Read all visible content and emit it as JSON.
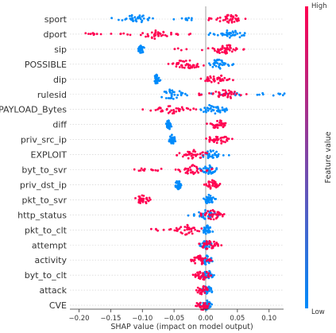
{
  "chart_data": {
    "type": "scatter",
    "subtype": "beeswarm",
    "xlabel": "SHAP value (impact on model output)",
    "xlim": [
      -0.21,
      0.14
    ],
    "xticks": [
      -0.2,
      -0.15,
      -0.1,
      -0.05,
      0.0,
      0.05,
      0.1
    ],
    "xtick_labels": [
      "−0.20",
      "−0.15",
      "−0.10",
      "−0.05",
      "0.00",
      "0.05",
      "0.10"
    ],
    "features": [
      {
        "name": "sport",
        "blue": {
          "range": [
            -0.15,
            -0.02
          ],
          "cluster": -0.11
        },
        "red": {
          "range": [
            0.0,
            0.065
          ],
          "cluster": 0.04
        }
      },
      {
        "name": "dport",
        "red": {
          "range": [
            -0.19,
            -0.02
          ],
          "cluster": -0.08
        },
        "blue": {
          "range": [
            0.0,
            0.06
          ],
          "cluster": 0.04
        }
      },
      {
        "name": "sip",
        "blue": {
          "range": [
            -0.105,
            -0.1
          ],
          "cluster": -0.102
        },
        "red": {
          "range": [
            -0.05,
            0.07
          ],
          "cluster": 0.03
        }
      },
      {
        "name": "POSSIBLE",
        "red": {
          "range": [
            -0.08,
            -0.01
          ],
          "cluster": -0.03
        },
        "blue": {
          "range": [
            0.0,
            0.05
          ],
          "cluster": 0.02
        }
      },
      {
        "name": "dip",
        "blue": {
          "range": [
            -0.08,
            -0.075
          ],
          "cluster": -0.078
        },
        "red": {
          "range": [
            -0.01,
            0.04
          ],
          "cluster": 0.02
        }
      },
      {
        "name": "rulesid",
        "blue": {
          "range": [
            -0.06,
            0.13
          ],
          "cluster": -0.055
        },
        "red": {
          "range": [
            -0.02,
            0.07
          ],
          "cluster": 0.03
        }
      },
      {
        "name": "PAYLOAD_Bytes",
        "red": {
          "range": [
            -0.1,
            -0.01
          ],
          "cluster": -0.05
        },
        "blue": {
          "range": [
            -0.02,
            0.04
          ],
          "cluster": 0.01
        }
      },
      {
        "name": "diff",
        "blue": {
          "range": [
            -0.06,
            -0.055
          ],
          "cluster": -0.058
        },
        "red": {
          "range": [
            0.0,
            0.03
          ],
          "cluster": 0.02
        }
      },
      {
        "name": "priv_src_ip",
        "blue": {
          "range": [
            -0.055,
            -0.05
          ],
          "cluster": -0.053
        },
        "red": {
          "range": [
            0.0,
            0.05
          ],
          "cluster": 0.02
        }
      },
      {
        "name": "EXPLOIT",
        "red": {
          "range": [
            -0.06,
            -0.01
          ],
          "cluster": -0.02
        },
        "blue": {
          "range": [
            0.0,
            0.04
          ],
          "cluster": 0.01
        }
      },
      {
        "name": "byt_to_svr",
        "red": {
          "range": [
            -0.12,
            0.02
          ],
          "cluster": -0.02
        },
        "blue": {
          "range": [
            -0.01,
            0.02
          ],
          "cluster": 0.005
        }
      },
      {
        "name": "priv_dst_ip",
        "blue": {
          "range": [
            -0.045,
            -0.04
          ],
          "cluster": -0.043
        },
        "red": {
          "range": [
            0.0,
            0.025
          ],
          "cluster": 0.01
        }
      },
      {
        "name": "pkt_to_svr",
        "red": {
          "range": [
            -0.115,
            -0.09
          ],
          "cluster": -0.1
        },
        "blue": {
          "range": [
            -0.005,
            0.01
          ],
          "cluster": 0.005
        }
      },
      {
        "name": "http_status",
        "blue": {
          "range": [
            -0.03,
            0.01
          ],
          "cluster": 0.0
        },
        "red": {
          "range": [
            0.0,
            0.045
          ],
          "cluster": 0.01
        }
      },
      {
        "name": "pkt_to_clt",
        "red": {
          "range": [
            -0.09,
            -0.01
          ],
          "cluster": -0.03
        },
        "blue": {
          "range": [
            -0.005,
            0.01
          ],
          "cluster": 0.003
        }
      },
      {
        "name": "attempt",
        "red": {
          "range": [
            -0.01,
            0.025
          ],
          "cluster": 0.005
        },
        "blue": {
          "range": [
            -0.01,
            0.005
          ],
          "cluster": 0.0
        }
      },
      {
        "name": "activity",
        "red": {
          "range": [
            -0.02,
            0.01
          ],
          "cluster": -0.01
        },
        "blue": {
          "range": [
            -0.01,
            0.015
          ],
          "cluster": 0.002
        }
      },
      {
        "name": "byt_to_clt",
        "red": {
          "range": [
            -0.03,
            0.01
          ],
          "cluster": -0.005
        },
        "blue": {
          "range": [
            -0.005,
            0.01
          ],
          "cluster": 0.003
        }
      },
      {
        "name": "attack",
        "red": {
          "range": [
            -0.015,
            0.005
          ],
          "cluster": -0.005
        },
        "blue": {
          "range": [
            -0.005,
            0.01
          ],
          "cluster": 0.002
        }
      },
      {
        "name": "CVE",
        "red": {
          "range": [
            -0.02,
            0.005
          ],
          "cluster": -0.005
        },
        "blue": {
          "range": [
            -0.005,
            0.01
          ],
          "cluster": 0.002
        }
      }
    ],
    "colorbar": {
      "title": "Feature value",
      "high_label": "High",
      "low_label": "Low"
    },
    "colors": {
      "low": "#008bfb",
      "high": "#ff0051",
      "zero_line": "#888888",
      "grid": "#cccccc"
    }
  }
}
